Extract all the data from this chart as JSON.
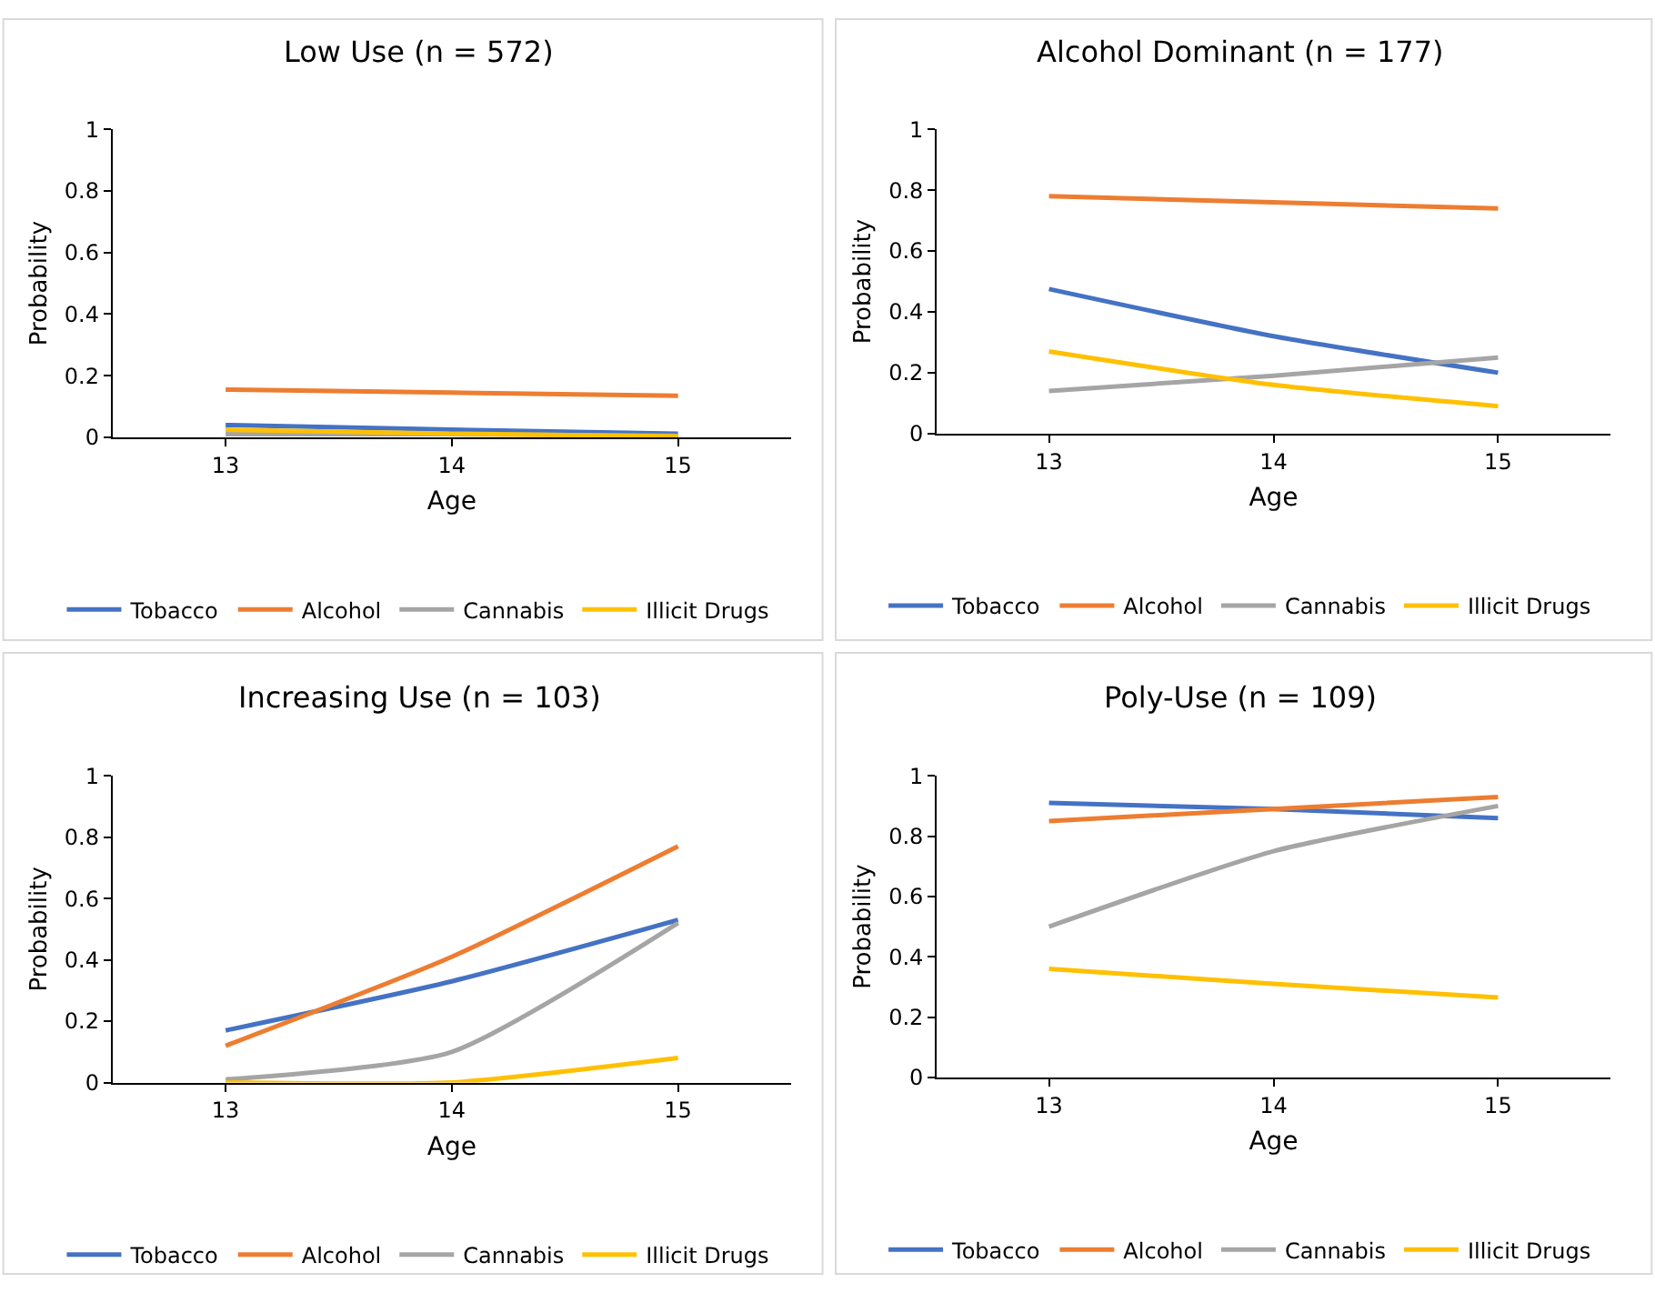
{
  "chart_data": [
    {
      "type": "line",
      "title": "Low Use (n = 572)",
      "xlabel": "Age",
      "ylabel": "Probability",
      "categories": [
        "13",
        "14",
        "15"
      ],
      "ylim": [
        0,
        1
      ],
      "yticks": [
        0,
        0.2,
        0.4,
        0.6,
        0.8,
        1
      ],
      "grid": false,
      "legend": "bottom",
      "marker": "none",
      "line_style": "solid",
      "series": [
        {
          "name": "Tobacco",
          "color": "#4472c4",
          "values": [
            0.04,
            0.025,
            0.012
          ]
        },
        {
          "name": "Alcohol",
          "color": "#ed7d31",
          "values": [
            0.155,
            0.145,
            0.135
          ]
        },
        {
          "name": "Cannabis",
          "color": "#a5a5a5",
          "values": [
            0.01,
            0.01,
            0.005
          ]
        },
        {
          "name": "Illicit Drugs",
          "color": "#ffc000",
          "values": [
            0.025,
            0.012,
            0.003
          ]
        }
      ]
    },
    {
      "type": "line",
      "title": "Alcohol Dominant (n = 177)",
      "xlabel": "Age",
      "ylabel": "Probability",
      "categories": [
        "13",
        "14",
        "15"
      ],
      "ylim": [
        0,
        1
      ],
      "yticks": [
        0,
        0.2,
        0.4,
        0.6,
        0.8,
        1
      ],
      "grid": false,
      "legend": "bottom",
      "marker": "none",
      "line_style": "solid",
      "series": [
        {
          "name": "Tobacco",
          "color": "#4472c4",
          "values": [
            0.475,
            0.32,
            0.2
          ]
        },
        {
          "name": "Alcohol",
          "color": "#ed7d31",
          "values": [
            0.78,
            0.76,
            0.74
          ]
        },
        {
          "name": "Cannabis",
          "color": "#a5a5a5",
          "values": [
            0.14,
            0.19,
            0.25
          ]
        },
        {
          "name": "Illicit Drugs",
          "color": "#ffc000",
          "values": [
            0.27,
            0.16,
            0.09
          ]
        }
      ]
    },
    {
      "type": "line",
      "title": "Increasing Use (n = 103)",
      "xlabel": "Age",
      "ylabel": "Probability",
      "categories": [
        "13",
        "14",
        "15"
      ],
      "ylim": [
        0,
        1
      ],
      "yticks": [
        0,
        0.2,
        0.4,
        0.6,
        0.8,
        1
      ],
      "grid": false,
      "legend": "bottom",
      "marker": "none",
      "line_style": "solid",
      "series": [
        {
          "name": "Tobacco",
          "color": "#4472c4",
          "values": [
            0.17,
            0.33,
            0.53
          ]
        },
        {
          "name": "Alcohol",
          "color": "#ed7d31",
          "values": [
            0.12,
            0.41,
            0.77
          ]
        },
        {
          "name": "Cannabis",
          "color": "#a5a5a5",
          "values": [
            0.01,
            0.1,
            0.52
          ]
        },
        {
          "name": "Illicit Drugs",
          "color": "#ffc000",
          "values": [
            0,
            0,
            0.08
          ]
        }
      ]
    },
    {
      "type": "line",
      "title": "Poly-Use (n = 109)",
      "xlabel": "Age",
      "ylabel": "Probability",
      "categories": [
        "13",
        "14",
        "15"
      ],
      "ylim": [
        0,
        1
      ],
      "yticks": [
        0,
        0.2,
        0.4,
        0.6,
        0.8,
        1
      ],
      "grid": false,
      "legend": "bottom",
      "marker": "none",
      "line_style": "solid",
      "series": [
        {
          "name": "Tobacco",
          "color": "#4472c4",
          "values": [
            0.91,
            0.89,
            0.86
          ]
        },
        {
          "name": "Alcohol",
          "color": "#ed7d31",
          "values": [
            0.85,
            0.89,
            0.93
          ]
        },
        {
          "name": "Cannabis",
          "color": "#a5a5a5",
          "values": [
            0.5,
            0.75,
            0.9
          ]
        },
        {
          "name": "Illicit Drugs",
          "color": "#ffc000",
          "values": [
            0.36,
            0.31,
            0.265
          ]
        }
      ]
    }
  ]
}
